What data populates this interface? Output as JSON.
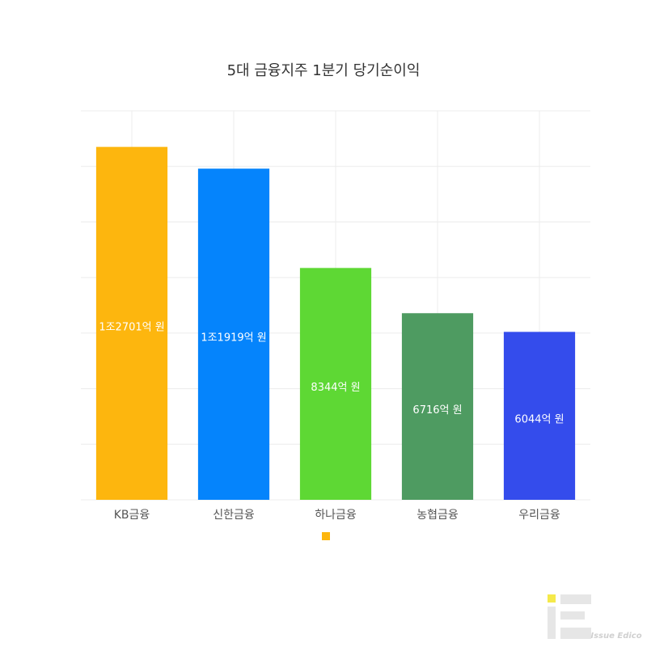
{
  "chart_data": {
    "type": "bar",
    "title": "5대 금융지주 1분기 당기순이익",
    "categories": [
      "KB금융",
      "신한금융",
      "하나금융",
      "농협금융",
      "우리금융"
    ],
    "values": [
      12701,
      11919,
      8344,
      6716,
      6044
    ],
    "value_labels": [
      "1조2701억 원",
      "1조1919억 원",
      "8344억 원",
      "6716억 원",
      "6044억 원"
    ],
    "colors": [
      "#fdb60e",
      "#0584fc",
      "#5ed834",
      "#4e9b61",
      "#344cec"
    ],
    "ylim": [
      0,
      14000
    ],
    "yticks": [
      0,
      2000,
      4000,
      6000,
      8000,
      10000,
      12000,
      14000
    ],
    "grid": true
  },
  "watermark": "Issue Edico"
}
